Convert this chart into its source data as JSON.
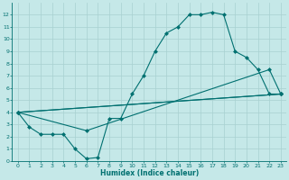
{
  "xlabel": "Humidex (Indice chaleur)",
  "ylabel": "",
  "bg_color": "#c5e8e8",
  "grid_color": "#a8d0d0",
  "line_color": "#007070",
  "xlim": [
    -0.5,
    23.5
  ],
  "ylim": [
    0,
    13
  ],
  "xticks": [
    0,
    1,
    2,
    3,
    4,
    5,
    6,
    7,
    8,
    9,
    10,
    11,
    12,
    13,
    14,
    15,
    16,
    17,
    18,
    19,
    20,
    21,
    22,
    23
  ],
  "yticks": [
    0,
    1,
    2,
    3,
    4,
    5,
    6,
    7,
    8,
    9,
    10,
    11,
    12
  ],
  "line1_x": [
    0,
    1,
    2,
    3,
    4,
    5,
    6,
    7,
    8,
    9,
    10,
    11,
    12,
    13,
    14,
    15,
    16,
    17,
    18,
    19,
    20,
    21,
    22,
    23
  ],
  "line1_y": [
    4.0,
    2.8,
    2.2,
    2.2,
    2.2,
    1.0,
    0.2,
    0.3,
    3.5,
    3.5,
    5.5,
    7.0,
    9.0,
    10.5,
    11.0,
    12.0,
    12.0,
    12.2,
    12.0,
    9.0,
    8.5,
    7.5,
    5.5,
    5.5
  ],
  "line2_x": [
    0,
    23
  ],
  "line2_y": [
    4.0,
    5.5
  ],
  "line3_x": [
    0,
    6,
    22,
    23
  ],
  "line3_y": [
    4.0,
    2.5,
    7.5,
    5.5
  ],
  "line4_x": [
    0,
    23
  ],
  "line4_y": [
    4.0,
    5.5
  ],
  "marker_size": 2.5,
  "line_width": 0.8,
  "tick_fontsize": 4.5,
  "xlabel_fontsize": 5.5
}
